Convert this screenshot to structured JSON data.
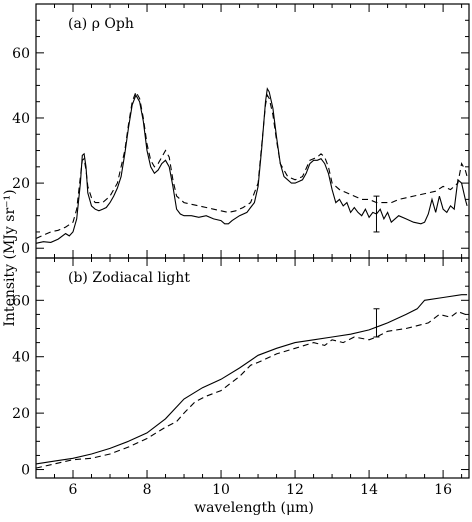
{
  "figure": {
    "ylabel": "Intensity (MJy sr⁻¹)",
    "xlabel": "wavelength (μm)"
  },
  "chart_data": [
    {
      "type": "line",
      "panel_label": "(a) ρ Oph",
      "xlim": [
        5.0,
        16.7
      ],
      "ylim": [
        -3,
        75
      ],
      "x_ticks": [
        6,
        8,
        10,
        12,
        14,
        16
      ],
      "y_ticks": [
        0,
        20,
        40,
        60
      ],
      "grid": false,
      "series": [
        {
          "style": "solid",
          "points": [
            [
              5.0,
              1.5
            ],
            [
              5.2,
              2.0
            ],
            [
              5.4,
              1.8
            ],
            [
              5.6,
              2.8
            ],
            [
              5.8,
              4.5
            ],
            [
              5.9,
              3.8
            ],
            [
              6.0,
              5.0
            ],
            [
              6.1,
              9.0
            ],
            [
              6.2,
              20.0
            ],
            [
              6.25,
              28.5
            ],
            [
              6.3,
              29.0
            ],
            [
              6.35,
              25.0
            ],
            [
              6.4,
              17.0
            ],
            [
              6.5,
              13.0
            ],
            [
              6.6,
              12.0
            ],
            [
              6.7,
              11.5
            ],
            [
              6.8,
              12.0
            ],
            [
              6.9,
              12.5
            ],
            [
              7.0,
              14.0
            ],
            [
              7.1,
              16.0
            ],
            [
              7.2,
              18.5
            ],
            [
              7.3,
              22.0
            ],
            [
              7.4,
              29.0
            ],
            [
              7.5,
              37.0
            ],
            [
              7.6,
              44.0
            ],
            [
              7.7,
              47.0
            ],
            [
              7.8,
              45.0
            ],
            [
              7.9,
              39.0
            ],
            [
              8.0,
              30.0
            ],
            [
              8.1,
              25.0
            ],
            [
              8.2,
              23.0
            ],
            [
              8.3,
              24.0
            ],
            [
              8.4,
              26.0
            ],
            [
              8.5,
              27.0
            ],
            [
              8.6,
              25.0
            ],
            [
              8.7,
              19.0
            ],
            [
              8.8,
              12.0
            ],
            [
              8.9,
              10.5
            ],
            [
              9.0,
              10.0
            ],
            [
              9.2,
              10.0
            ],
            [
              9.4,
              9.5
            ],
            [
              9.6,
              10.0
            ],
            [
              9.8,
              9.0
            ],
            [
              10.0,
              8.5
            ],
            [
              10.1,
              7.5
            ],
            [
              10.2,
              7.5
            ],
            [
              10.3,
              8.5
            ],
            [
              10.5,
              10.0
            ],
            [
              10.7,
              11.0
            ],
            [
              10.8,
              12.5
            ],
            [
              10.9,
              14.0
            ],
            [
              11.0,
              19.0
            ],
            [
              11.1,
              31.0
            ],
            [
              11.2,
              45.0
            ],
            [
              11.25,
              49.0
            ],
            [
              11.3,
              48.0
            ],
            [
              11.4,
              43.0
            ],
            [
              11.5,
              34.0
            ],
            [
              11.6,
              26.0
            ],
            [
              11.7,
              22.0
            ],
            [
              11.8,
              21.0
            ],
            [
              11.9,
              20.0
            ],
            [
              12.0,
              20.0
            ],
            [
              12.1,
              20.5
            ],
            [
              12.2,
              21.0
            ],
            [
              12.3,
              23.0
            ],
            [
              12.4,
              26.0
            ],
            [
              12.5,
              27.0
            ],
            [
              12.6,
              27.0
            ],
            [
              12.7,
              27.5
            ],
            [
              12.8,
              26.0
            ],
            [
              12.9,
              23.0
            ],
            [
              13.0,
              18.0
            ],
            [
              13.1,
              14.0
            ],
            [
              13.2,
              15.0
            ],
            [
              13.3,
              13.0
            ],
            [
              13.4,
              14.0
            ],
            [
              13.5,
              11.0
            ],
            [
              13.6,
              12.5
            ],
            [
              13.7,
              11.0
            ],
            [
              13.8,
              10.0
            ],
            [
              13.9,
              12.0
            ],
            [
              14.0,
              9.5
            ],
            [
              14.1,
              11.0
            ],
            [
              14.2,
              10.5
            ],
            [
              14.3,
              12.0
            ],
            [
              14.4,
              9.0
            ],
            [
              14.5,
              11.0
            ],
            [
              14.6,
              8.0
            ],
            [
              14.8,
              10.0
            ],
            [
              15.0,
              9.0
            ],
            [
              15.2,
              8.0
            ],
            [
              15.4,
              7.5
            ],
            [
              15.5,
              8.0
            ],
            [
              15.6,
              10.5
            ],
            [
              15.7,
              15.0
            ],
            [
              15.8,
              11.0
            ],
            [
              15.9,
              16.0
            ],
            [
              16.0,
              12.0
            ],
            [
              16.1,
              11.0
            ],
            [
              16.2,
              13.0
            ],
            [
              16.3,
              12.0
            ],
            [
              16.4,
              21.0
            ],
            [
              16.5,
              20.0
            ],
            [
              16.6,
              15.0
            ],
            [
              16.65,
              13.0
            ]
          ]
        },
        {
          "style": "dashed",
          "points": [
            [
              5.0,
              3.0
            ],
            [
              5.2,
              4.0
            ],
            [
              5.4,
              5.0
            ],
            [
              5.6,
              5.5
            ],
            [
              5.8,
              6.5
            ],
            [
              6.0,
              8.0
            ],
            [
              6.1,
              12.0
            ],
            [
              6.2,
              22.0
            ],
            [
              6.25,
              27.0
            ],
            [
              6.3,
              27.5
            ],
            [
              6.35,
              24.0
            ],
            [
              6.4,
              19.0
            ],
            [
              6.5,
              15.5
            ],
            [
              6.6,
              14.0
            ],
            [
              6.8,
              14.0
            ],
            [
              7.0,
              16.0
            ],
            [
              7.2,
              20.0
            ],
            [
              7.4,
              30.0
            ],
            [
              7.5,
              38.0
            ],
            [
              7.6,
              45.0
            ],
            [
              7.7,
              48.0
            ],
            [
              7.8,
              46.0
            ],
            [
              7.9,
              40.0
            ],
            [
              8.0,
              32.0
            ],
            [
              8.1,
              27.0
            ],
            [
              8.2,
              25.0
            ],
            [
              8.3,
              26.0
            ],
            [
              8.4,
              28.0
            ],
            [
              8.5,
              30.0
            ],
            [
              8.6,
              28.0
            ],
            [
              8.7,
              21.0
            ],
            [
              8.8,
              16.0
            ],
            [
              9.0,
              14.0
            ],
            [
              9.2,
              13.5
            ],
            [
              9.4,
              13.0
            ],
            [
              9.6,
              12.5
            ],
            [
              9.8,
              12.0
            ],
            [
              10.0,
              11.5
            ],
            [
              10.2,
              11.0
            ],
            [
              10.4,
              11.5
            ],
            [
              10.6,
              12.5
            ],
            [
              10.8,
              14.0
            ],
            [
              11.0,
              20.0
            ],
            [
              11.1,
              32.0
            ],
            [
              11.2,
              44.0
            ],
            [
              11.25,
              47.0
            ],
            [
              11.3,
              46.0
            ],
            [
              11.4,
              41.0
            ],
            [
              11.5,
              33.0
            ],
            [
              11.6,
              26.0
            ],
            [
              11.8,
              22.0
            ],
            [
              12.0,
              21.0
            ],
            [
              12.2,
              22.0
            ],
            [
              12.4,
              27.0
            ],
            [
              12.6,
              28.0
            ],
            [
              12.7,
              29.0
            ],
            [
              12.8,
              28.0
            ],
            [
              12.9,
              25.0
            ],
            [
              13.0,
              20.0
            ],
            [
              13.2,
              18.0
            ],
            [
              13.4,
              17.0
            ],
            [
              13.6,
              16.0
            ],
            [
              13.8,
              15.0
            ],
            [
              14.0,
              15.0
            ],
            [
              14.2,
              14.0
            ],
            [
              14.4,
              14.0
            ],
            [
              14.6,
              14.0
            ],
            [
              14.8,
              15.0
            ],
            [
              15.0,
              15.5
            ],
            [
              15.2,
              16.0
            ],
            [
              15.4,
              16.5
            ],
            [
              15.6,
              17.0
            ],
            [
              15.8,
              17.5
            ],
            [
              16.0,
              19.0
            ],
            [
              16.2,
              18.0
            ],
            [
              16.4,
              20.0
            ],
            [
              16.5,
              26.0
            ],
            [
              16.6,
              24.0
            ],
            [
              16.65,
              22.0
            ]
          ]
        }
      ],
      "error_bar": {
        "x": 14.2,
        "y_low": 5.0,
        "y_high": 16.0
      }
    },
    {
      "type": "line",
      "panel_label": "(b) Zodiacal light",
      "xlim": [
        5.0,
        16.7
      ],
      "ylim": [
        -3,
        75
      ],
      "x_ticks": [
        6,
        8,
        10,
        12,
        14,
        16
      ],
      "x_tick_labels": [
        "6",
        "8",
        "10",
        "12",
        "14",
        "16"
      ],
      "y_ticks": [
        0,
        20,
        40,
        60
      ],
      "grid": false,
      "series": [
        {
          "style": "solid",
          "points": [
            [
              5.0,
              2.0
            ],
            [
              5.5,
              3.0
            ],
            [
              6.0,
              4.0
            ],
            [
              6.5,
              5.5
            ],
            [
              7.0,
              7.5
            ],
            [
              7.5,
              10.0
            ],
            [
              8.0,
              13.0
            ],
            [
              8.5,
              18.0
            ],
            [
              9.0,
              25.0
            ],
            [
              9.5,
              29.0
            ],
            [
              10.0,
              32.0
            ],
            [
              10.5,
              36.0
            ],
            [
              11.0,
              40.5
            ],
            [
              11.5,
              43.0
            ],
            [
              12.0,
              45.0
            ],
            [
              12.5,
              46.0
            ],
            [
              13.0,
              47.0
            ],
            [
              13.5,
              48.0
            ],
            [
              14.0,
              49.5
            ],
            [
              14.5,
              52.0
            ],
            [
              15.0,
              55.0
            ],
            [
              15.3,
              57.0
            ],
            [
              15.5,
              60.0
            ],
            [
              16.0,
              61.0
            ],
            [
              16.5,
              62.0
            ],
            [
              16.65,
              62.0
            ]
          ]
        },
        {
          "style": "dashed",
          "points": [
            [
              5.0,
              0.5
            ],
            [
              5.5,
              2.0
            ],
            [
              6.0,
              3.5
            ],
            [
              6.5,
              4.0
            ],
            [
              7.0,
              5.5
            ],
            [
              7.5,
              8.0
            ],
            [
              8.0,
              11.0
            ],
            [
              8.5,
              15.0
            ],
            [
              8.8,
              17.0
            ],
            [
              9.0,
              20.0
            ],
            [
              9.3,
              24.0
            ],
            [
              9.6,
              26.0
            ],
            [
              10.0,
              28.0
            ],
            [
              10.5,
              33.0
            ],
            [
              10.8,
              37.0
            ],
            [
              11.0,
              38.0
            ],
            [
              11.5,
              41.0
            ],
            [
              12.0,
              43.0
            ],
            [
              12.5,
              45.0
            ],
            [
              12.8,
              44.0
            ],
            [
              13.0,
              46.0
            ],
            [
              13.3,
              45.0
            ],
            [
              13.6,
              47.0
            ],
            [
              14.0,
              46.0
            ],
            [
              14.2,
              47.0
            ],
            [
              14.5,
              49.0
            ],
            [
              15.0,
              50.0
            ],
            [
              15.3,
              51.0
            ],
            [
              15.6,
              52.0
            ],
            [
              15.9,
              55.0
            ],
            [
              16.2,
              54.0
            ],
            [
              16.4,
              56.0
            ],
            [
              16.6,
              55.0
            ],
            [
              16.65,
              53.0
            ]
          ]
        }
      ],
      "error_bar": {
        "x": 14.2,
        "y_low": 47.0,
        "y_high": 57.0
      }
    }
  ]
}
